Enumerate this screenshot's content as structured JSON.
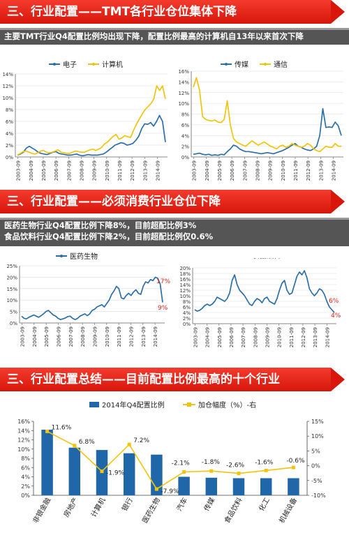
{
  "sections": [
    {
      "title": "三、行业配置——TMT各行业仓位集体下降",
      "subtitle": [
        "主要TMT行业Q4配置比例均出现下降，配置比例最高的计算机自13年以来首次下降"
      ]
    },
    {
      "title": "三、行业配置——必须消费行业仓位下降",
      "subtitle": [
        "医药生物行业Q4配置比例下降8%，目前超配比例3%",
        "食品饮料行业Q4配置比例下降2%，目前超配比例仅0.6%"
      ]
    },
    {
      "title": "三、行业配置总结——目前配置比例最高的十个行业",
      "subtitle": []
    }
  ],
  "colors": {
    "banner": "#e0221a",
    "blue": "#2b6fa8",
    "yellow": "#f2c40c",
    "red_label": "#e0221a",
    "bar": "#1f67a8"
  },
  "chart_data": [
    {
      "id": "tmt1",
      "type": "line",
      "x_ticks": [
        "2003-09",
        "2004-09",
        "2005-09",
        "2006-09",
        "2007-09",
        "2008-09",
        "2009-09",
        "2010-09",
        "2011-09",
        "2012-09",
        "2013-09",
        "2014-09"
      ],
      "y_ticks": [
        "0%",
        "2%",
        "4%",
        "6%",
        "8%",
        "10%",
        "12%",
        "14%"
      ],
      "ylim": [
        0,
        14
      ],
      "series": [
        {
          "name": "电子",
          "color": "#2b6fa8",
          "values": [
            0.3,
            0.5,
            0.8,
            1.5,
            1.8,
            1.5,
            1.2,
            0.8,
            0.6,
            0.5,
            0.4,
            0.6,
            0.8,
            0.9,
            0.6,
            0.5,
            0.4,
            0.3,
            0.3,
            0.4,
            0.5,
            0.3,
            0.2,
            0.3,
            0.4,
            0.3,
            0.3,
            0.3,
            0.4,
            0.5,
            0.8,
            1.2,
            1.6,
            2.0,
            2.2,
            2.4,
            2.3,
            2.0,
            2.1,
            2.3,
            2.8,
            3.5,
            4.8,
            5.6,
            5.5,
            5.8,
            5.2,
            6.0,
            7.0,
            6.0,
            2.5
          ]
        },
        {
          "name": "计算机",
          "color": "#f2c40c",
          "values": [
            0.3,
            0.6,
            0.9,
            1.0,
            0.8,
            0.6,
            0.5,
            0.7,
            1.0,
            1.1,
            0.8,
            0.7,
            0.8,
            1.0,
            1.2,
            0.8,
            0.7,
            0.6,
            0.6,
            0.8,
            1.0,
            0.9,
            0.8,
            0.8,
            1.0,
            1.2,
            1.3,
            1.1,
            1.3,
            1.6,
            2.2,
            2.5,
            3.0,
            3.5,
            3.8,
            3.0,
            3.2,
            3.6,
            3.4,
            3.3,
            4.5,
            5.5,
            6.4,
            7.2,
            8.0,
            8.5,
            9.0,
            9.8,
            12.0,
            11.2,
            12.0,
            9.8
          ]
        }
      ]
    },
    {
      "id": "tmt2",
      "type": "line",
      "x_ticks": [
        "2003-09",
        "2004-09",
        "2005-09",
        "2006-09",
        "2007-09",
        "2008-09",
        "2009-09",
        "2010-09",
        "2011-09",
        "2012-09",
        "2013-09",
        "2014-09"
      ],
      "y_ticks": [
        "0%",
        "2%",
        "4%",
        "6%",
        "8%",
        "10%",
        "12%",
        "14%",
        "16%"
      ],
      "ylim": [
        0,
        16
      ],
      "series": [
        {
          "name": "传媒",
          "color": "#2b6fa8",
          "values": [
            0.5,
            0.6,
            0.7,
            0.5,
            0.4,
            0.5,
            0.3,
            0.4,
            0.3,
            0.5,
            0.4,
            1.0,
            1.5,
            2.2,
            2.0,
            1.5,
            1.2,
            1.0,
            1.0,
            0.9,
            0.8,
            0.7,
            0.6,
            0.7,
            0.8,
            0.7,
            0.6,
            0.8,
            1.0,
            1.2,
            1.5,
            1.8,
            2.2,
            2.5,
            2.0,
            1.8,
            1.5,
            1.3,
            1.2,
            1.5,
            2.0,
            4.0,
            9.0,
            5.5,
            5.6,
            5.5,
            6.5,
            5.8,
            4.0
          ]
        },
        {
          "name": "通信",
          "color": "#f2c40c",
          "values": [
            13.0,
            14.8,
            12.5,
            7.5,
            7.0,
            6.8,
            6.7,
            6.9,
            6.5,
            6.4,
            7.0,
            10.5,
            6.0,
            3.5,
            2.8,
            2.5,
            2.2,
            2.0,
            2.5,
            3.0,
            2.6,
            2.2,
            2.5,
            2.8,
            2.4,
            2.0,
            1.8,
            1.5,
            2.0,
            2.2,
            1.8,
            2.0,
            2.5,
            2.2,
            2.0,
            1.8,
            2.0,
            2.5,
            2.2,
            1.5,
            1.2,
            1.0,
            1.5,
            2.0,
            1.8,
            1.8,
            2.5,
            2.0,
            2.0
          ]
        }
      ]
    },
    {
      "id": "xf1",
      "type": "line",
      "x_ticks": [
        "2003-09",
        "2004-09",
        "2005-09",
        "2006-09",
        "2007-09",
        "2008-09",
        "2009-09",
        "2010-09",
        "2011-09",
        "2012-09",
        "2013-09",
        "2014-09"
      ],
      "y_ticks": [
        "0%",
        "5%",
        "10%",
        "15%",
        "20%",
        "25%"
      ],
      "ylim": [
        0,
        25
      ],
      "series": [
        {
          "name": "医药生物",
          "color": "#2b6fa8",
          "values": [
            3.0,
            2.0,
            1.8,
            2.5,
            3.0,
            3.5,
            3.0,
            2.5,
            3.2,
            4.0,
            5.0,
            5.5,
            4.5,
            3.5,
            3.0,
            2.0,
            1.5,
            1.8,
            2.2,
            2.8,
            3.0,
            2.0,
            1.5,
            2.0,
            3.0,
            3.5,
            4.0,
            3.2,
            4.0,
            5.5,
            6.0,
            7.0,
            7.5,
            8.0,
            7.0,
            8.5,
            10.0,
            12.5,
            14.0,
            16.0,
            15.0,
            11.0,
            10.5,
            12.0,
            13.0,
            12.0,
            13.5,
            14.5,
            13.0,
            12.5,
            16.0,
            18.0,
            17.5,
            19.0,
            18.5,
            20.0,
            19.5,
            17.0,
            9.0
          ]
        }
      ],
      "annotations": [
        "17%",
        "9%"
      ]
    },
    {
      "id": "xf2",
      "type": "line",
      "x_ticks": [
        "2003-09",
        "2004-09",
        "2005-09",
        "2006-09",
        "2007-09",
        "2008-09",
        "2009-09",
        "2010-09",
        "2011-09",
        "2012-09",
        "2013-09",
        "2014-09"
      ],
      "y_ticks": [
        "0%",
        "2%",
        "4%",
        "6%",
        "8%",
        "10%",
        "12%",
        "14%",
        "16%",
        "18%",
        "20%"
      ],
      "ylim": [
        0,
        20
      ],
      "series": [
        {
          "name": "食品饮料",
          "color": "#2b6fa8",
          "values": [
            5.0,
            4.5,
            4.8,
            5.5,
            6.5,
            7.0,
            6.5,
            7.0,
            8.0,
            9.5,
            9.0,
            8.5,
            8.0,
            9.0,
            11.0,
            15.5,
            17.5,
            14.0,
            12.0,
            11.0,
            10.0,
            8.5,
            7.0,
            6.5,
            8.0,
            9.0,
            8.5,
            7.5,
            9.0,
            9.5,
            8.0,
            7.5,
            7.0,
            9.0,
            12.0,
            14.5,
            15.5,
            12.0,
            10.5,
            11.0,
            14.0,
            17.0,
            18.5,
            17.5,
            19.0,
            16.5,
            12.5,
            11.0,
            10.0,
            11.0,
            12.5,
            12.0,
            10.5,
            8.0,
            6.0,
            5.0,
            4.0
          ]
        }
      ],
      "annotations": [
        "6%",
        "4%"
      ]
    },
    {
      "id": "top10",
      "type": "bar",
      "legend": [
        "2014年Q4配置比例",
        "加仓幅度（%）-右"
      ],
      "categories": [
        "非银金融",
        "房地产",
        "计算机",
        "银行",
        "医药生物",
        "汽车",
        "传媒",
        "食品饮料",
        "化工",
        "机械设备"
      ],
      "series": [
        {
          "name": "2014年Q4配置比例",
          "axis": "left",
          "values": [
            14.2,
            10.3,
            9.8,
            9.1,
            8.8,
            4.0,
            3.8,
            3.7,
            3.7,
            3.7
          ]
        },
        {
          "name": "加仓幅度（%）-右",
          "axis": "right",
          "values": [
            11.6,
            6.8,
            -1.9,
            7.2,
            -7.9,
            -2.1,
            -1.8,
            -2.6,
            -1.6,
            -0.6
          ]
        }
      ],
      "point_labels": [
        "11.6%",
        "6.8%",
        "-1.9%",
        "7.2%",
        "-7.9%",
        "-2.1%",
        "-1.8%",
        "-2.6%",
        "-1.6%",
        "-0.6%"
      ],
      "y_left_ticks": [
        "0%",
        "2%",
        "4%",
        "6%",
        "8%",
        "10%",
        "12%",
        "14%",
        "16%"
      ],
      "y_left_lim": [
        0,
        16
      ],
      "y_right_ticks": [
        "-10%",
        "-5%",
        "0%",
        "5%",
        "10%",
        "15%"
      ],
      "y_right_lim": [
        -10,
        15
      ]
    }
  ]
}
